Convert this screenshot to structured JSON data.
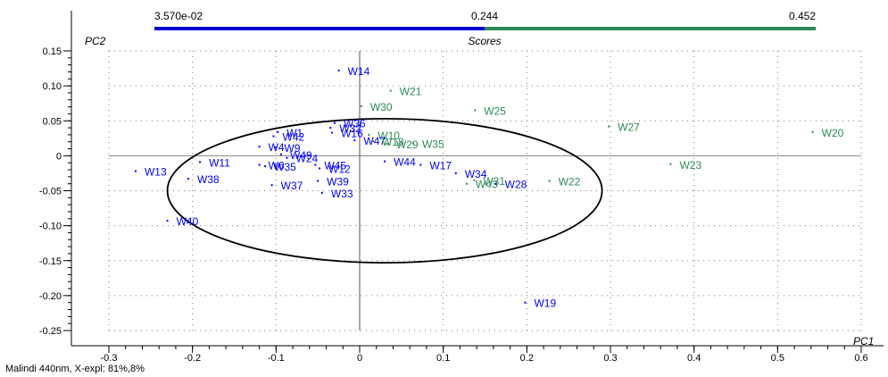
{
  "chart_data": {
    "type": "scatter",
    "title": "Scores",
    "xlabel": "PC1",
    "ylabel": "PC2",
    "xlim": [
      -0.3,
      0.6
    ],
    "ylim": [
      -0.25,
      0.15
    ],
    "x_ticks": [
      "-0.3",
      "-0.2",
      "-0.1",
      "0",
      "0.1",
      "0.2",
      "0.3",
      "0.4",
      "0.5",
      "0.6"
    ],
    "y_ticks": [
      "0.15",
      "0.10",
      "0.05",
      "0",
      "-0.05",
      "-0.10",
      "-0.15",
      "-0.20",
      "-0.25"
    ],
    "grid": true,
    "colorbar": {
      "labels": [
        "3.570e-02",
        "0.244",
        "0.452"
      ],
      "colors": [
        "#0000cc",
        "#2e8b57"
      ]
    },
    "ellipse": {
      "center": [
        0.03,
        -0.05
      ],
      "semi_axis_x": 0.26,
      "semi_axis_y": 0.103
    },
    "points": [
      {
        "label": "W14",
        "x": -0.025,
        "y": 0.122,
        "color": "#0000ff"
      },
      {
        "label": "W21",
        "x": 0.037,
        "y": 0.093,
        "color": "#2e8b57"
      },
      {
        "label": "W30",
        "x": 0.002,
        "y": 0.071,
        "color": "#2e8b57"
      },
      {
        "label": "W25",
        "x": 0.138,
        "y": 0.065,
        "color": "#2e8b57"
      },
      {
        "label": "W27",
        "x": 0.298,
        "y": 0.042,
        "color": "#2e8b57"
      },
      {
        "label": "W20",
        "x": 0.542,
        "y": 0.034,
        "color": "#2e8b57"
      },
      {
        "label": "W36",
        "x": -0.03,
        "y": 0.047,
        "color": "#0000ff"
      },
      {
        "label": "W32",
        "x": -0.035,
        "y": 0.04,
        "color": "#0000ff"
      },
      {
        "label": "W16",
        "x": -0.033,
        "y": 0.033,
        "color": "#0000ff"
      },
      {
        "label": "W10",
        "x": 0.011,
        "y": 0.03,
        "color": "#2e8b57"
      },
      {
        "label": "W47",
        "x": -0.006,
        "y": 0.022,
        "color": "#0000ff"
      },
      {
        "label": "W18",
        "x": 0.016,
        "y": 0.021,
        "color": "#2e8b57"
      },
      {
        "label": "W29",
        "x": 0.033,
        "y": 0.017,
        "color": "#2e8b57"
      },
      {
        "label": "W35",
        "x": 0.064,
        "y": 0.018,
        "color": "#2e8b57"
      },
      {
        "label": "W1",
        "x": -0.098,
        "y": 0.034,
        "color": "#0000ff"
      },
      {
        "label": "W42",
        "x": -0.103,
        "y": 0.028,
        "color": "#0000ff"
      },
      {
        "label": "W4",
        "x": -0.12,
        "y": 0.013,
        "color": "#0000ff"
      },
      {
        "label": "W9",
        "x": -0.101,
        "y": 0.012,
        "color": "#0000ff"
      },
      {
        "label": "W49",
        "x": -0.094,
        "y": 0.002,
        "color": "#0000ff"
      },
      {
        "label": "W24",
        "x": -0.087,
        "y": -0.003,
        "color": "#0000ff"
      },
      {
        "label": "W45",
        "x": -0.053,
        "y": -0.013,
        "color": "#0000ff"
      },
      {
        "label": "W12",
        "x": -0.048,
        "y": -0.018,
        "color": "#0000ff"
      },
      {
        "label": "W11",
        "x": -0.191,
        "y": -0.009,
        "color": "#0000ff"
      },
      {
        "label": "W6",
        "x": -0.12,
        "y": -0.013,
        "color": "#0000ff"
      },
      {
        "label": "W35",
        "x": -0.113,
        "y": -0.015,
        "color": "#0000ff"
      },
      {
        "label": "W13",
        "x": -0.268,
        "y": -0.022,
        "color": "#0000ff"
      },
      {
        "label": "W38",
        "x": -0.205,
        "y": -0.033,
        "color": "#0000ff"
      },
      {
        "label": "W39",
        "x": -0.05,
        "y": -0.036,
        "color": "#0000ff"
      },
      {
        "label": "W37",
        "x": -0.105,
        "y": -0.042,
        "color": "#0000ff"
      },
      {
        "label": "W33",
        "x": -0.045,
        "y": -0.053,
        "color": "#0000ff"
      },
      {
        "label": "W44",
        "x": 0.03,
        "y": -0.008,
        "color": "#0000ff"
      },
      {
        "label": "W17",
        "x": 0.073,
        "y": -0.013,
        "color": "#0000ff"
      },
      {
        "label": "W34",
        "x": 0.115,
        "y": -0.025,
        "color": "#0000ff"
      },
      {
        "label": "W31",
        "x": 0.137,
        "y": -0.035,
        "color": "#2e8b57"
      },
      {
        "label": "W43",
        "x": 0.128,
        "y": -0.04,
        "color": "#2e8b57"
      },
      {
        "label": "W28",
        "x": 0.163,
        "y": -0.04,
        "color": "#0000ff"
      },
      {
        "label": "W22",
        "x": 0.227,
        "y": -0.036,
        "color": "#2e8b57"
      },
      {
        "label": "W23",
        "x": 0.372,
        "y": -0.012,
        "color": "#2e8b57"
      },
      {
        "label": "W40",
        "x": -0.23,
        "y": -0.093,
        "color": "#0000ff"
      },
      {
        "label": "W19",
        "x": 0.198,
        "y": -0.21,
        "color": "#0000ff"
      }
    ]
  },
  "footer": "Malindi 440nm, X-expl: 81%,8%"
}
